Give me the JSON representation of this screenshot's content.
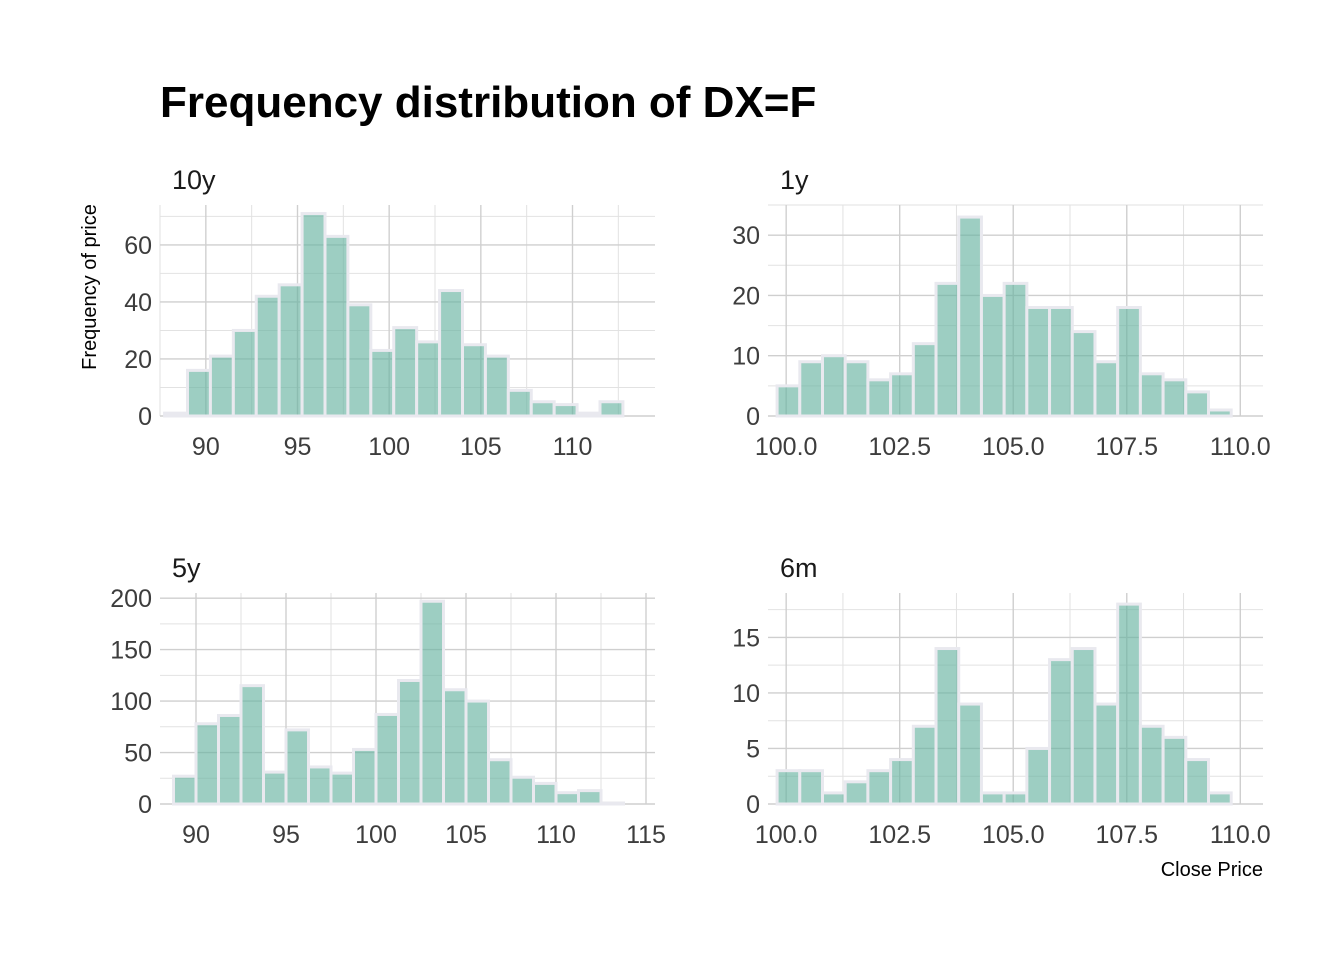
{
  "chart_data": {
    "type": "bar",
    "title": "Frequency distribution of DX=F",
    "ylabel": "Frequency of price",
    "xlabel": "Close Price",
    "grid": true,
    "colors": {
      "bar": "#69b3a2",
      "bar_edge": "#e9e9ef",
      "grid": "#cfcfcf"
    },
    "panels": [
      {
        "label": "10y",
        "bin_start": 87.75,
        "bin_width": 1.25,
        "counts": [
          1,
          16,
          21,
          30,
          42,
          46,
          71,
          63,
          39,
          23,
          31,
          26,
          44,
          25,
          21,
          9,
          5,
          4,
          1,
          5
        ],
        "xlim": [
          87.5,
          114.5
        ],
        "ylim": [
          0,
          74
        ],
        "xticks": [
          90,
          95,
          100,
          105,
          110
        ],
        "xtick_labels": [
          "90",
          "95",
          "100",
          "105",
          "110"
        ],
        "yticks": [
          0,
          20,
          40,
          60
        ],
        "ytick_labels": [
          "0",
          "20",
          "40",
          "60"
        ]
      },
      {
        "label": "1y",
        "bin_start": 99.8,
        "bin_width": 0.5,
        "counts": [
          5,
          9,
          10,
          9,
          6,
          7,
          12,
          22,
          33,
          20,
          22,
          18,
          18,
          14,
          9,
          18,
          7,
          6,
          4,
          1
        ],
        "xlim": [
          99.6,
          110.5
        ],
        "ylim": [
          0,
          35
        ],
        "xticks": [
          100,
          102.5,
          105,
          107.5,
          110
        ],
        "xtick_labels": [
          "100.0",
          "102.5",
          "105.0",
          "107.5",
          "110.0"
        ],
        "yticks": [
          0,
          10,
          20,
          30
        ],
        "ytick_labels": [
          "0",
          "10",
          "20",
          "30"
        ]
      },
      {
        "label": "5y",
        "bin_start": 88.75,
        "bin_width": 1.25,
        "counts": [
          27,
          78,
          86,
          115,
          31,
          72,
          36,
          30,
          53,
          87,
          120,
          197,
          111,
          100,
          43,
          26,
          20,
          11,
          13,
          1
        ],
        "xlim": [
          88.0,
          115.5
        ],
        "ylim": [
          0,
          205
        ],
        "xticks": [
          90,
          95,
          100,
          105,
          110,
          115
        ],
        "xtick_labels": [
          "90",
          "95",
          "100",
          "105",
          "110",
          "115"
        ],
        "yticks": [
          0,
          50,
          100,
          150,
          200
        ],
        "ytick_labels": [
          "0",
          "50",
          "100",
          "150",
          "200"
        ]
      },
      {
        "label": "6m",
        "bin_start": 99.8,
        "bin_width": 0.5,
        "counts": [
          3,
          3,
          1,
          2,
          3,
          4,
          7,
          14,
          9,
          1,
          1,
          5,
          13,
          14,
          9,
          18,
          7,
          6,
          4,
          1
        ],
        "xlim": [
          99.6,
          110.5
        ],
        "ylim": [
          0,
          19
        ],
        "xticks": [
          100,
          102.5,
          105,
          107.5,
          110
        ],
        "xtick_labels": [
          "100.0",
          "102.5",
          "105.0",
          "107.5",
          "110.0"
        ],
        "yticks": [
          0,
          5,
          10,
          15
        ],
        "ytick_labels": [
          "0",
          "5",
          "10",
          "15"
        ]
      }
    ]
  }
}
